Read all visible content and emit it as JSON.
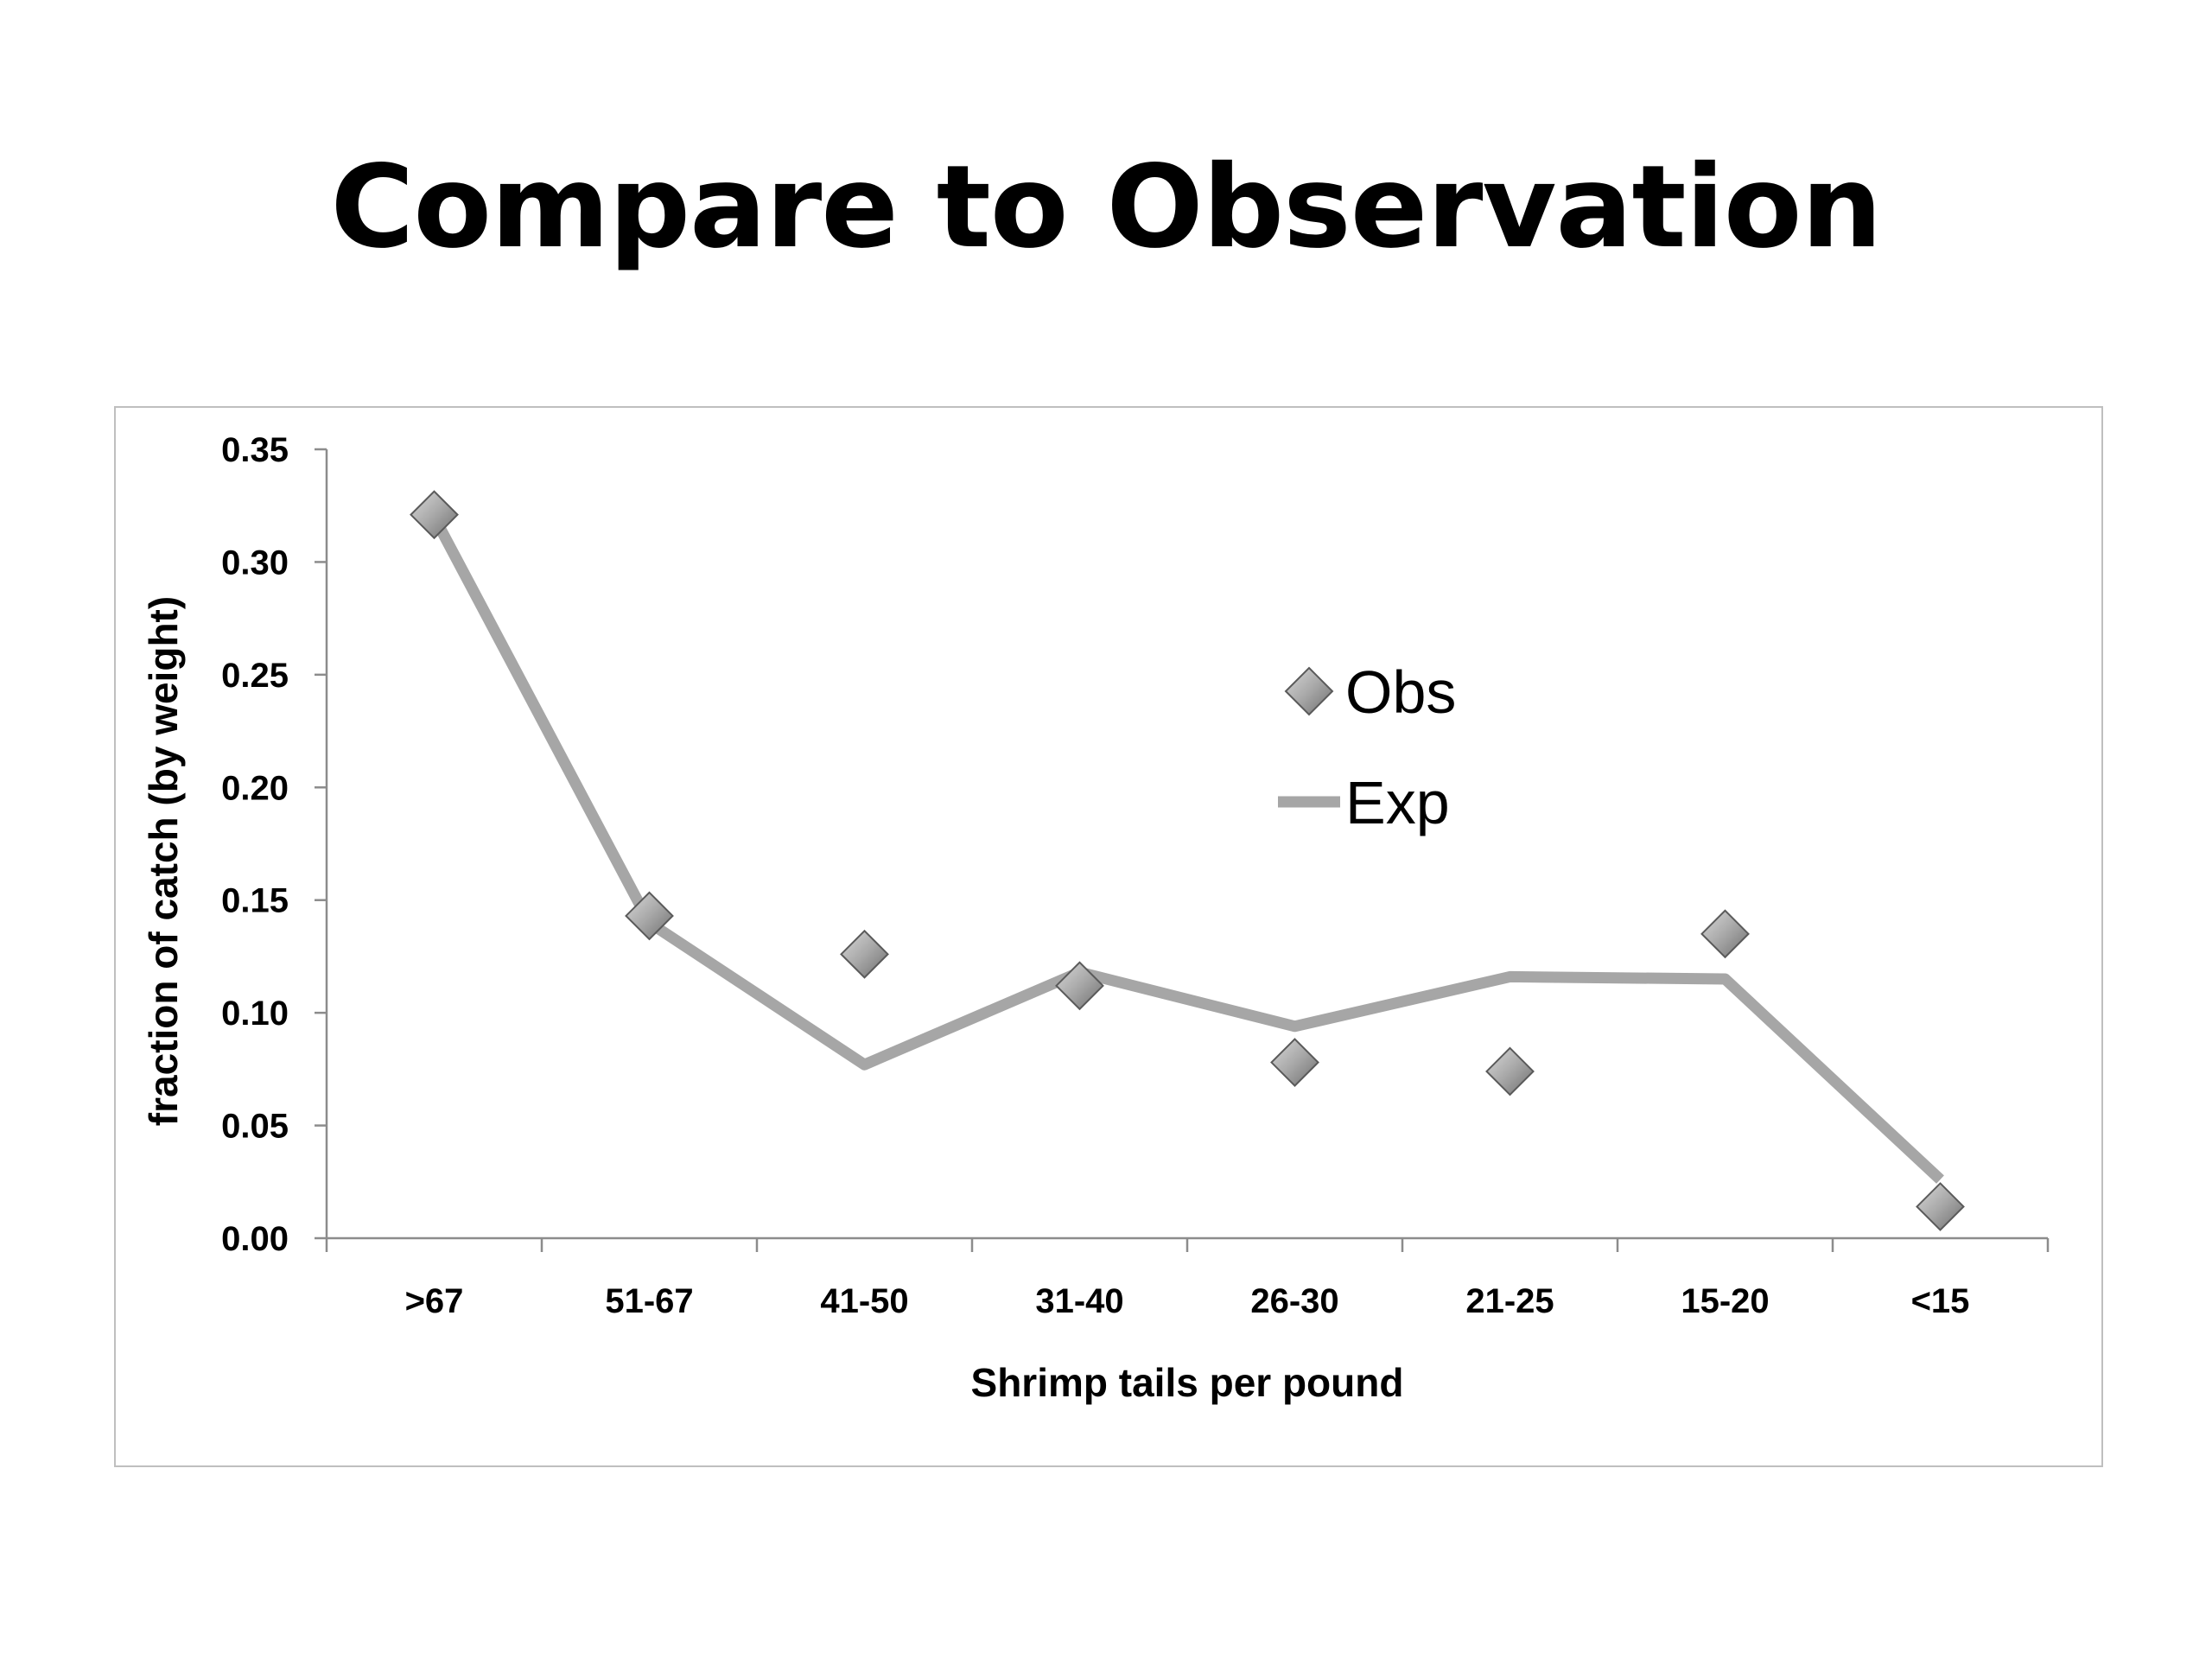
{
  "slide": {
    "title": "Compare to Observation"
  },
  "chart_data": {
    "type": "line",
    "categories": [
      ">67",
      "51-67",
      "41-50",
      "31-40",
      "26-30",
      "21-25",
      "15-20",
      "<15"
    ],
    "series": [
      {
        "name": "Obs",
        "style": "markers",
        "marker": "diamond",
        "color": "#9a9a9a",
        "values": [
          0.321,
          0.143,
          0.126,
          0.112,
          0.078,
          0.074,
          0.135,
          0.014
        ]
      },
      {
        "name": "Exp",
        "style": "line",
        "color": "#a6a6a6",
        "values": [
          0.32,
          0.14,
          0.077,
          0.118,
          0.094,
          0.116,
          0.115,
          0.026
        ]
      }
    ],
    "xlabel": "Shrimp tails per pound",
    "ylabel": "fraction of catch (by weight)",
    "ylim": [
      0,
      0.35
    ],
    "yticks": [
      "0.00",
      "0.05",
      "0.10",
      "0.15",
      "0.20",
      "0.25",
      "0.30",
      "0.35"
    ],
    "grid": false,
    "legend_position": "upper-middle"
  }
}
